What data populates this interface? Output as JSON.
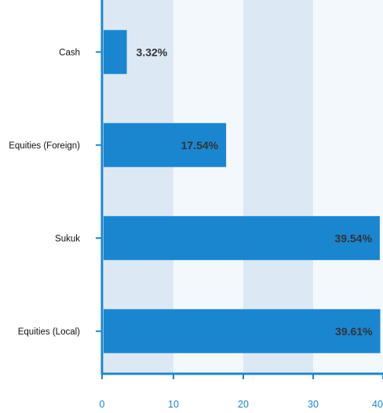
{
  "chart_data": {
    "type": "bar",
    "orientation": "horizontal",
    "categories": [
      "Cash",
      "Equities (Foreign)",
      "Sukuk",
      "Equities (Local)"
    ],
    "values": [
      3.32,
      17.54,
      39.54,
      39.61
    ],
    "data_labels": [
      "3.32%",
      "17.54%",
      "39.54%",
      "39.61%"
    ],
    "xlim": [
      0,
      40
    ],
    "x_ticks": [
      0,
      10,
      20,
      30,
      40
    ],
    "x_tick_labels": [
      "0",
      "10",
      "20",
      "30",
      "40"
    ],
    "title": "",
    "xlabel": "",
    "ylabel": "",
    "grid": true,
    "legend": "none",
    "colors": {
      "bar": "#1a86d0",
      "axis": "#1a86d0",
      "band_dark": "#dce9f5",
      "band_light": "#f3f8fc",
      "tick_label": "#1a86d0",
      "data_label": "#333333",
      "category_label": "#111111"
    }
  }
}
